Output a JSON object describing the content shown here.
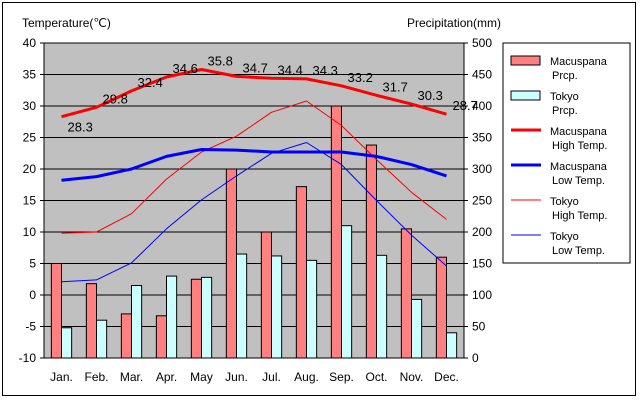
{
  "chart_data": {
    "type": "bar",
    "categories": [
      "Jan.",
      "Feb.",
      "Mar.",
      "Apr.",
      "May",
      "Jun.",
      "Jul.",
      "Aug.",
      "Sep.",
      "Oct.",
      "Nov.",
      "Dec."
    ],
    "left_axis": {
      "label": "Temperature(℃)",
      "ylim": [
        -10,
        40
      ],
      "ticks": [
        "40",
        "35",
        "30",
        "25",
        "20",
        "15",
        "10",
        "5",
        "0",
        "-5",
        "-10"
      ]
    },
    "right_axis": {
      "label": "Precipitation(mm)",
      "ylim": [
        0,
        500
      ],
      "ticks": [
        "500",
        "450",
        "400",
        "350",
        "300",
        "250",
        "200",
        "150",
        "100",
        "50",
        "0"
      ]
    },
    "grid": true,
    "background": "#c0c0c0",
    "legend_position": "right",
    "series": [
      {
        "name": "Macuspana Prcp.",
        "legend_lines": [
          "Macuspana",
          "Prcp."
        ],
        "type": "bar",
        "axis": "right",
        "color": "#ff8080",
        "values": [
          150,
          118,
          70,
          67,
          125,
          300,
          200,
          272,
          400,
          338,
          205,
          160
        ]
      },
      {
        "name": "Tokyo Prcp.",
        "legend_lines": [
          "Tokyo",
          "Prcp."
        ],
        "type": "bar",
        "axis": "right",
        "color": "#ccffff",
        "values": [
          48,
          60,
          115,
          130,
          128,
          165,
          162,
          155,
          210,
          163,
          93,
          40
        ]
      },
      {
        "name": "Macuspana High Temp.",
        "legend_lines": [
          "Macuspana",
          "High Temp."
        ],
        "type": "line",
        "axis": "left",
        "color": "#ff0000",
        "width": 3,
        "values": [
          28.3,
          29.8,
          32.4,
          34.6,
          35.8,
          34.7,
          34.4,
          34.3,
          33.2,
          31.7,
          30.3,
          28.7
        ],
        "labels": [
          "28.3",
          "29.8",
          "32.4",
          "34.6",
          "35.8",
          "34.7",
          "34.4",
          "34.3",
          "33.2",
          "31.7",
          "30.3",
          "28.7"
        ]
      },
      {
        "name": "Macuspana Low Temp.",
        "legend_lines": [
          "Macuspana",
          "Low Temp."
        ],
        "type": "line",
        "axis": "left",
        "color": "#0000ff",
        "width": 3,
        "values": [
          18.2,
          18.8,
          20.0,
          22.0,
          23.1,
          23.0,
          22.7,
          22.7,
          22.7,
          22.0,
          20.7,
          18.9
        ]
      },
      {
        "name": "Tokyo High Temp.",
        "legend_lines": [
          "Tokyo",
          "High Temp."
        ],
        "type": "line",
        "axis": "left",
        "color": "#ff0000",
        "width": 1,
        "values": [
          9.8,
          10.0,
          12.9,
          18.4,
          22.7,
          25.2,
          29.0,
          30.8,
          26.9,
          21.5,
          16.3,
          12.0
        ]
      },
      {
        "name": "Tokyo Low Temp.",
        "legend_lines": [
          "Tokyo",
          "Low Temp."
        ],
        "type": "line",
        "axis": "left",
        "color": "#0000ff",
        "width": 1,
        "values": [
          2.1,
          2.4,
          5.1,
          10.5,
          15.1,
          18.9,
          22.5,
          24.2,
          20.7,
          15.0,
          9.5,
          4.6
        ]
      }
    ]
  }
}
